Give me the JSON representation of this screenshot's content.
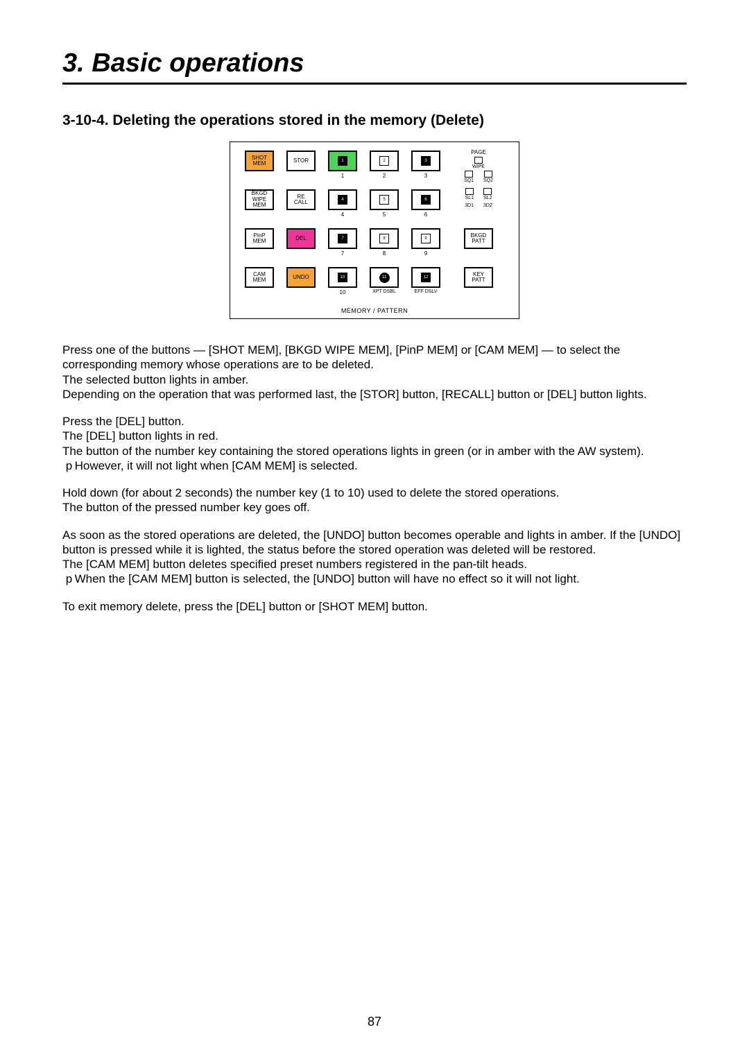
{
  "title": "3. Basic operations",
  "section": "3-10-4.  Deleting the operations stored in the memory (Delete)",
  "panel": {
    "col1": [
      "SHOT MEM",
      "BKGD WIPE MEM",
      "PinP MEM",
      "CAM MEM"
    ],
    "col2": [
      "STOR",
      "RE CALL",
      "DEL",
      "UNDO"
    ],
    "nums_sub": [
      "1",
      "2",
      "3",
      "4",
      "5",
      "6",
      "7",
      "8",
      "9",
      "10"
    ],
    "xpt": "XPT DSBL",
    "eff": "EFF DSLV",
    "rcol": {
      "page": "PAGE",
      "wipe": "WIPE",
      "sq1": "SQ1",
      "sq2": "SQ2",
      "sl1": "SL1",
      "sl2": "SL2",
      "d31": "3D1",
      "d32": "3D2",
      "bkgd": "BKGD PATT",
      "key": "KEY PATT"
    },
    "footer": "MEMORY / PATTERN"
  },
  "steps": [
    {
      "lines": [
        "Press one of the buttons — [SHOT MEM], [BKGD WIPE MEM], [PinP MEM] or [CAM MEM] — to select the corresponding memory whose operations are to be deleted.",
        "The selected button lights in amber.",
        "Depending on the operation that was performed last, the [STOR] button, [RECALL] button or [DEL] button lights."
      ]
    },
    {
      "lines": [
        "Press the [DEL] button.",
        "The [DEL] button lights in red.",
        "The button of the number key containing the stored operations lights in green (or in amber with the AW system).",
        " p However, it will not light when [CAM MEM] is selected."
      ]
    },
    {
      "lines": [
        "Hold down (for about 2 seconds) the number key (1 to 10) used to delete the stored operations.",
        "The button of the pressed number key goes off."
      ]
    },
    {
      "lines": [
        "As soon as the stored operations are deleted, the [UNDO] button becomes operable and lights in amber. If the [UNDO] button is pressed while it is lighted, the status before the stored operation was deleted will be restored.",
        "The [CAM MEM] button deletes specified preset numbers registered in the pan-tilt heads.",
        " p When the [CAM MEM] button is selected, the [UNDO] button will have no effect so it will not light."
      ]
    },
    {
      "lines": [
        "To exit memory delete, press the [DEL] button or [SHOT MEM] button."
      ]
    }
  ],
  "page_number": "87",
  "colors": {
    "amber": "#f5a43a",
    "red": "#ec3597",
    "green": "#4bd35a"
  }
}
